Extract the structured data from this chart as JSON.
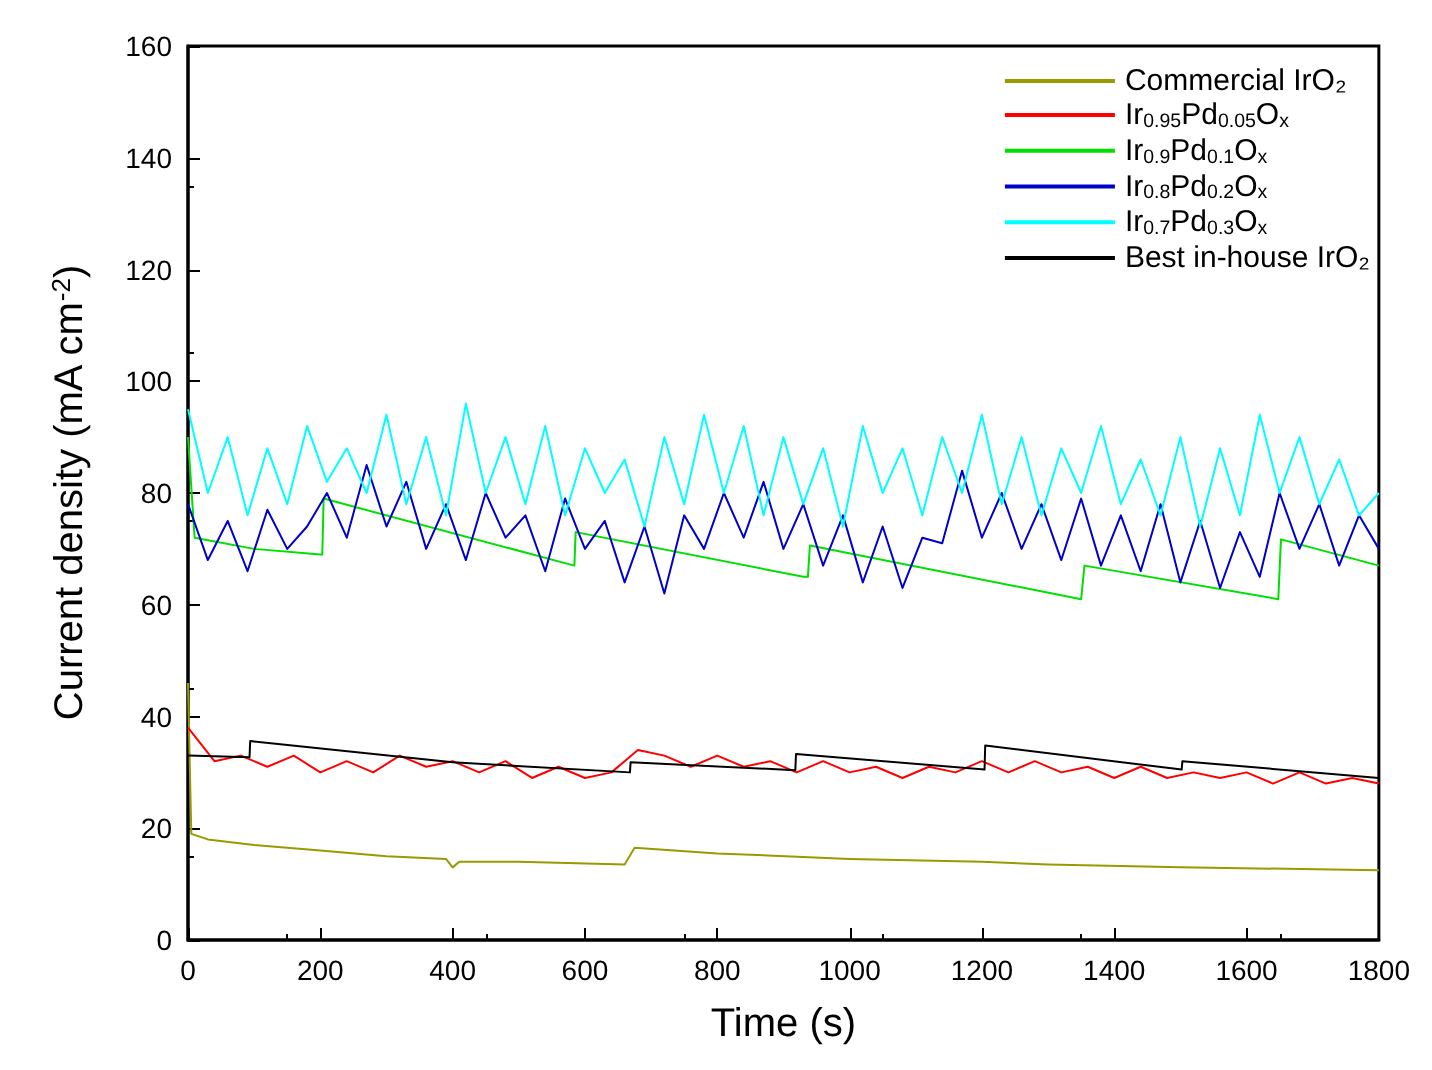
{
  "chart_data": {
    "type": "line",
    "xlabel": "Time (s)",
    "ylabel": "Current density (mA cm$^{-2}$)",
    "xlim": [
      0,
      1800
    ],
    "xticks": [
      0,
      200,
      400,
      600,
      800,
      1000,
      1200,
      1400,
      1600,
      1800
    ],
    "ylim": [
      0,
      160
    ],
    "yticks": [
      0,
      20,
      40,
      60,
      80,
      100,
      120,
      140,
      160
    ],
    "grid": false,
    "legend": "top right",
    "marker": "none",
    "line_style": "solid",
    "series": [
      {
        "name": "Commercial IrO₂",
        "color": "#999900",
        "x": [
          0,
          5,
          30,
          100,
          200,
          300,
          390,
          400,
          410,
          500,
          660,
          675,
          800,
          1000,
          1200,
          1300,
          1500,
          1800
        ],
        "values": [
          46,
          19,
          18,
          17,
          16,
          15,
          14.5,
          13,
          14,
          14,
          13.5,
          16.5,
          15.5,
          14.5,
          14,
          13.5,
          13,
          12.5
        ]
      },
      {
        "name": "Ir$_{0.95}$Pd$_{0.05}$O$_{x}$",
        "color": "#ff0000",
        "x": [
          0,
          40,
          80,
          120,
          160,
          200,
          240,
          280,
          320,
          360,
          400,
          440,
          480,
          520,
          560,
          600,
          640,
          680,
          720,
          760,
          800,
          840,
          880,
          920,
          960,
          1000,
          1040,
          1080,
          1120,
          1160,
          1200,
          1240,
          1280,
          1320,
          1360,
          1400,
          1440,
          1480,
          1520,
          1560,
          1600,
          1640,
          1680,
          1720,
          1760,
          1800
        ],
        "values": [
          38,
          32,
          33,
          31,
          33,
          30,
          32,
          30,
          33,
          31,
          32,
          30,
          32,
          29,
          31,
          29,
          30,
          34,
          33,
          31,
          33,
          31,
          32,
          30,
          32,
          30,
          31,
          29,
          31,
          30,
          32,
          30,
          32,
          30,
          31,
          29,
          31,
          29,
          30,
          29,
          30,
          28,
          30,
          28,
          29,
          28
        ]
      },
      {
        "name": "Ir$_{0.9}$Pd$_{0.1}$O$_{x}$",
        "color": "#00e000",
        "x": [
          0,
          10,
          100,
          200,
          203,
          205,
          584,
          586,
          930,
          937,
          940,
          1350,
          1355,
          1648,
          1652,
          1800
        ],
        "values": [
          90,
          72,
          70,
          69,
          69,
          79,
          67,
          73,
          65,
          65,
          70.6,
          61,
          67,
          61,
          71.7,
          67
        ]
      },
      {
        "name": "Ir$_{0.8}$Pd$_{0.2}$O$_{x}$",
        "color": "#0000cc",
        "x": [
          0,
          30,
          60,
          90,
          120,
          150,
          180,
          210,
          240,
          270,
          300,
          330,
          360,
          390,
          420,
          450,
          480,
          510,
          540,
          570,
          600,
          630,
          660,
          690,
          720,
          750,
          780,
          810,
          840,
          870,
          900,
          930,
          960,
          990,
          1020,
          1050,
          1080,
          1110,
          1140,
          1170,
          1200,
          1230,
          1260,
          1290,
          1320,
          1350,
          1380,
          1410,
          1440,
          1470,
          1500,
          1530,
          1560,
          1590,
          1620,
          1650,
          1680,
          1710,
          1740,
          1770,
          1800
        ],
        "values": [
          78,
          68,
          75,
          66,
          77,
          70,
          74,
          80,
          72,
          85,
          74,
          82,
          70,
          78,
          68,
          80,
          72,
          76,
          66,
          79,
          70,
          75,
          64,
          74,
          62,
          76,
          70,
          80,
          72,
          82,
          70,
          78,
          67,
          76,
          64,
          74,
          63,
          72,
          71,
          84,
          72,
          80,
          70,
          78,
          68,
          79,
          67,
          76,
          66,
          78,
          64,
          75,
          63,
          73,
          65,
          80,
          70,
          78,
          67,
          76,
          70
        ]
      },
      {
        "name": "Ir$_{0.7}$Pd$_{0.3}$O$_{x}$",
        "color": "#00ffff",
        "x": [
          0,
          30,
          60,
          90,
          120,
          150,
          180,
          210,
          240,
          270,
          300,
          330,
          360,
          390,
          420,
          450,
          480,
          510,
          540,
          570,
          600,
          630,
          660,
          690,
          720,
          750,
          780,
          810,
          840,
          870,
          900,
          930,
          960,
          990,
          1020,
          1050,
          1080,
          1110,
          1140,
          1170,
          1200,
          1230,
          1260,
          1290,
          1320,
          1350,
          1380,
          1410,
          1440,
          1470,
          1500,
          1530,
          1560,
          1590,
          1620,
          1650,
          1680,
          1710,
          1740,
          1770,
          1800
        ],
        "values": [
          95,
          80,
          90,
          76,
          88,
          78,
          92,
          82,
          88,
          80,
          94,
          78,
          90,
          76,
          96,
          80,
          90,
          78,
          92,
          76,
          88,
          80,
          86,
          74,
          90,
          78,
          94,
          80,
          92,
          76,
          90,
          78,
          88,
          74,
          92,
          80,
          88,
          76,
          90,
          80,
          94,
          78,
          90,
          76,
          88,
          80,
          92,
          78,
          86,
          76,
          90,
          74,
          88,
          76,
          94,
          80,
          90,
          78,
          86,
          76,
          80
        ]
      },
      {
        "name": "Best in-house IrO₂",
        "color": "#000000",
        "x": [
          0,
          93,
          94,
          400,
          668,
          669,
          918,
          919,
          1204,
          1205,
          1502,
          1503,
          1800
        ],
        "values": [
          33,
          32.7,
          35.6,
          31.8,
          30,
          31.8,
          30.4,
          33.3,
          30.5,
          34.8,
          30.5,
          32,
          29
        ]
      }
    ]
  }
}
